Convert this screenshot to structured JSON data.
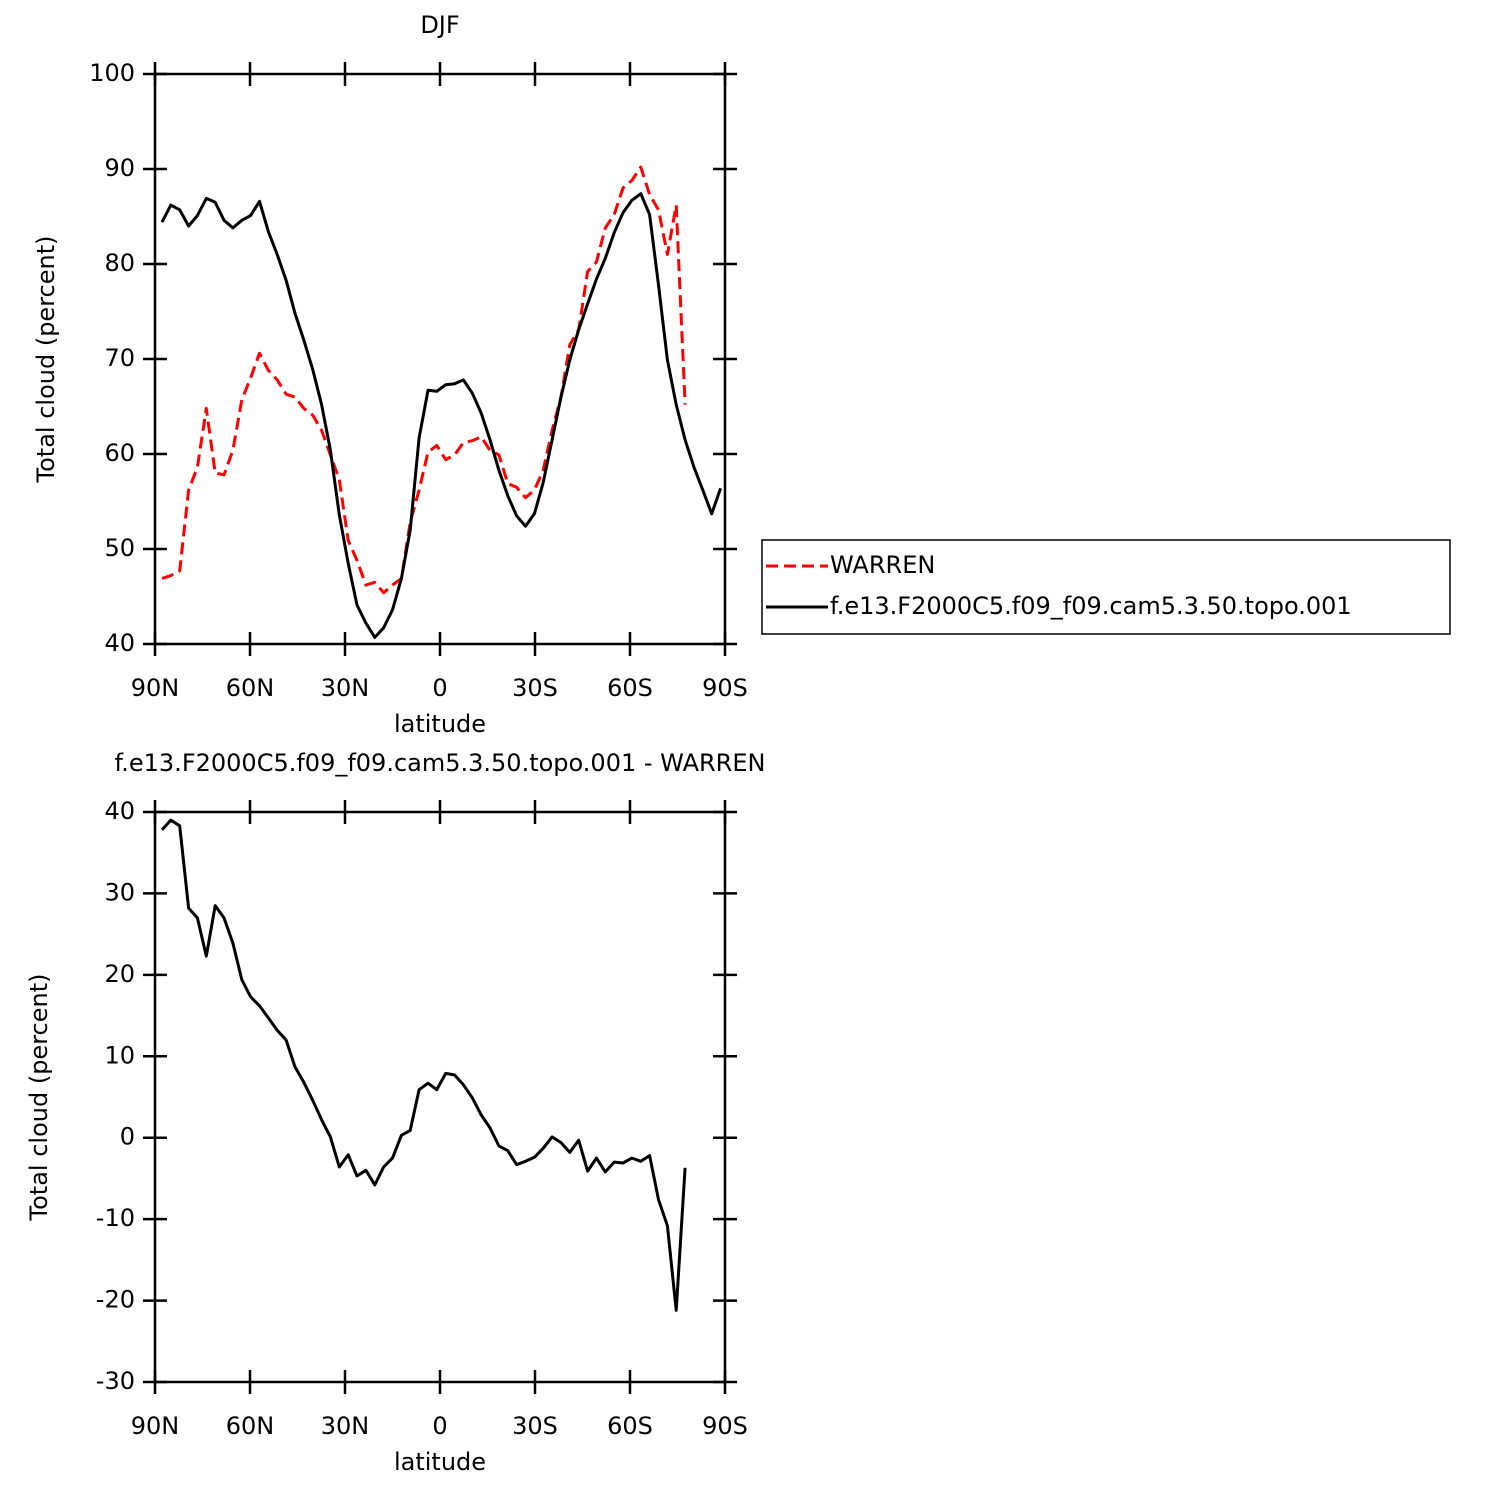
{
  "chart_data": [
    {
      "type": "line",
      "title": "DJF",
      "xlabel": "latitude",
      "ylabel": "Total cloud (percent)",
      "x": [
        87.8,
        85.0,
        82.2,
        79.4,
        76.6,
        73.8,
        71.0,
        68.2,
        65.4,
        62.6,
        59.8,
        57.0,
        54.2,
        51.4,
        48.6,
        45.8,
        43.0,
        40.2,
        37.4,
        34.6,
        31.8,
        29.0,
        26.2,
        23.4,
        20.6,
        17.8,
        15.0,
        12.2,
        9.4,
        6.6,
        3.8,
        1.0,
        -1.8,
        -4.6,
        -7.4,
        -10.2,
        -13.0,
        -15.8,
        -18.6,
        -21.4,
        -24.2,
        -27.0,
        -29.8,
        -32.6,
        -35.4,
        -38.2,
        -41.0,
        -43.8,
        -46.6,
        -49.4,
        -52.2,
        -55.0,
        -57.8,
        -60.6,
        -63.4,
        -66.2,
        -69.0,
        -71.8,
        -74.6,
        -77.4,
        -80.2,
        -83.0,
        -85.8,
        -88.6
      ],
      "series": [
        {
          "name": "WARREN",
          "color": "#ff0000",
          "style": "dashed",
          "values": [
            46.9,
            47.2,
            47.7,
            56.2,
            58.6,
            64.8,
            58.0,
            57.8,
            60.4,
            65.7,
            68.0,
            70.6,
            68.8,
            67.8,
            66.3,
            66.0,
            64.8,
            64.1,
            62.5,
            59.9,
            57.3,
            50.9,
            48.8,
            46.2,
            46.5,
            45.4,
            46.2,
            46.9,
            52.8,
            56.2,
            60.2,
            60.9,
            59.4,
            59.9,
            61.2,
            61.4,
            61.8,
            60.4,
            59.9,
            56.9,
            56.5,
            55.4,
            56.2,
            58.3,
            62.5,
            66.0,
            71.5,
            73.1,
            79.2,
            80.2,
            83.8,
            85.2,
            88.0,
            88.8,
            90.2,
            87.3,
            85.7,
            81.0,
            86.2,
            65.2,
            null,
            null,
            null,
            null
          ]
        },
        {
          "name": "f.e13.F2000C5.f09_f09.cam5.3.50.topo.001",
          "color": "#000000",
          "style": "solid",
          "values": [
            84.4,
            86.2,
            85.7,
            84.0,
            85.1,
            86.9,
            86.5,
            84.6,
            83.8,
            84.6,
            85.1,
            86.6,
            83.4,
            81.0,
            78.3,
            74.8,
            72.0,
            68.9,
            65.2,
            60.4,
            53.6,
            48.5,
            44.1,
            42.2,
            40.7,
            41.7,
            43.6,
            46.9,
            52.0,
            61.7,
            66.7,
            66.6,
            67.3,
            67.4,
            67.8,
            66.4,
            64.3,
            61.5,
            58.3,
            55.6,
            53.5,
            52.4,
            53.7,
            57.0,
            61.5,
            66.0,
            69.9,
            73.1,
            75.8,
            78.4,
            80.6,
            83.3,
            85.4,
            86.7,
            87.4,
            85.2,
            77.8,
            69.9,
            65.2,
            61.5,
            58.6,
            56.2,
            53.7,
            56.4
          ]
        }
      ],
      "xlim": [
        90,
        -90
      ],
      "xticks": [
        {
          "value": 90,
          "label": "90N"
        },
        {
          "value": 60,
          "label": "60N"
        },
        {
          "value": 30,
          "label": "30N"
        },
        0,
        {
          "value": -30,
          "label": "30S"
        },
        {
          "value": -60,
          "label": "60S"
        },
        {
          "value": -90,
          "label": "90S"
        }
      ],
      "ylim": [
        40,
        100
      ],
      "yticks": [
        40,
        50,
        60,
        70,
        80,
        90,
        100
      ],
      "legend": "right"
    },
    {
      "type": "line",
      "title": "f.e13.F2000C5.f09_f09.cam5.3.50.topo.001 - WARREN",
      "xlabel": "latitude",
      "ylabel": "Total cloud (percent)",
      "x": [
        87.8,
        85.0,
        82.2,
        79.4,
        76.6,
        73.8,
        71.0,
        68.2,
        65.4,
        62.6,
        59.8,
        57.0,
        54.2,
        51.4,
        48.6,
        45.8,
        43.0,
        40.2,
        37.4,
        34.6,
        31.8,
        29.0,
        26.2,
        23.4,
        20.6,
        17.8,
        15.0,
        12.2,
        9.4,
        6.6,
        3.8,
        1.0,
        -1.8,
        -4.6,
        -7.4,
        -10.2,
        -13.0,
        -15.8,
        -18.6,
        -21.4,
        -24.2,
        -27.0,
        -29.8,
        -32.6,
        -35.4,
        -38.2,
        -41.0,
        -43.8,
        -46.6,
        -49.4,
        -52.2,
        -55.0,
        -57.8,
        -60.6,
        -63.4,
        -66.2,
        -69.0,
        -71.8,
        -74.6,
        -77.4
      ],
      "values": [
        37.8,
        39.0,
        38.3,
        28.2,
        27.0,
        22.3,
        28.5,
        27.0,
        23.9,
        19.4,
        17.3,
        16.2,
        14.7,
        13.2,
        12.0,
        8.7,
        6.8,
        4.6,
        2.2,
        0.1,
        -3.6,
        -2.1,
        -4.7,
        -4.0,
        -5.8,
        -3.6,
        -2.5,
        0.3,
        0.9,
        5.9,
        6.7,
        5.9,
        7.9,
        7.7,
        6.5,
        4.9,
        2.8,
        1.2,
        -1.0,
        -1.6,
        -3.3,
        -2.9,
        -2.4,
        -1.3,
        0.1,
        -0.6,
        -1.8,
        -0.3,
        -4.1,
        -2.5,
        -4.2,
        -3.0,
        -3.1,
        -2.5,
        -2.9,
        -2.2,
        -7.6,
        -10.8,
        -21.2,
        -3.7
      ],
      "color": "#000000",
      "xlim": [
        90,
        -90
      ],
      "xticks": [
        {
          "value": 90,
          "label": "90N"
        },
        {
          "value": 60,
          "label": "60N"
        },
        {
          "value": 30,
          "label": "30N"
        },
        0,
        {
          "value": -30,
          "label": "30S"
        },
        {
          "value": -60,
          "label": "60S"
        },
        {
          "value": -90,
          "label": "90S"
        }
      ],
      "ylim": [
        -30,
        40
      ],
      "yticks": [
        -30,
        -20,
        -10,
        0,
        10,
        20,
        30,
        40
      ]
    }
  ]
}
